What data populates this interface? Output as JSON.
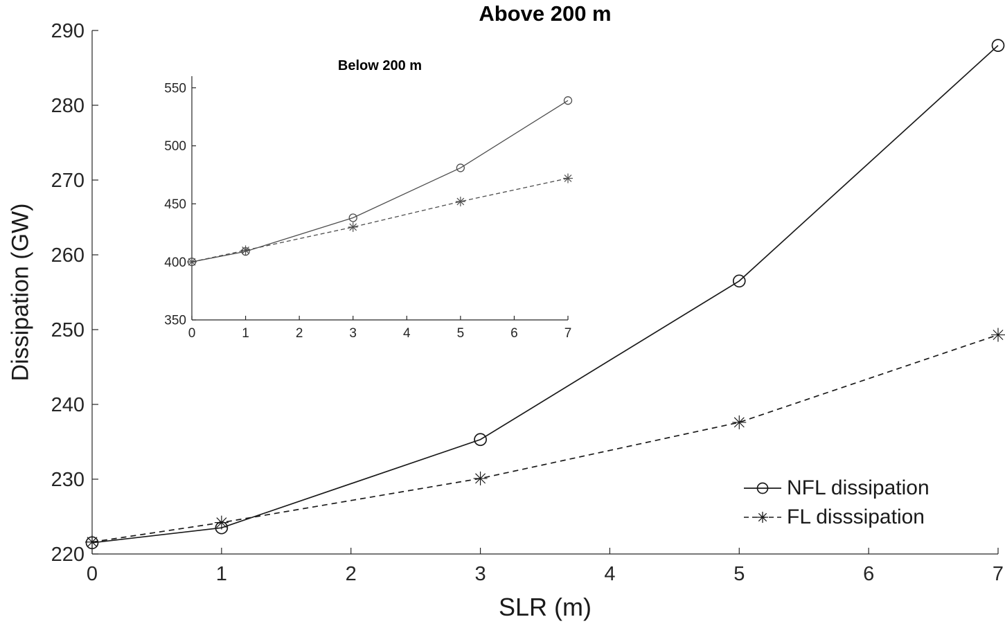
{
  "figure": {
    "background": "#ffffff",
    "axis_color": "#262626",
    "main_line_color": "#1a1a1a",
    "inset_line_color": "#4d4d4d"
  },
  "chart_data": [
    {
      "id": "main",
      "type": "line",
      "title": "Above 200 m",
      "xlabel": "SLR (m)",
      "ylabel": "Dissipation (GW)",
      "x": [
        0,
        1,
        3,
        5,
        7
      ],
      "xlim": [
        0,
        7
      ],
      "ylim": [
        220,
        290
      ],
      "xticks": [
        0,
        1,
        2,
        3,
        4,
        5,
        6,
        7
      ],
      "yticks": [
        220,
        230,
        240,
        250,
        260,
        270,
        280,
        290
      ],
      "grid": false,
      "legend_position": "bottom-right",
      "series": [
        {
          "name": "NFL dissipation",
          "line_style": "solid",
          "marker": "circle",
          "values": [
            221.5,
            223.5,
            235.3,
            256.5,
            288.0
          ]
        },
        {
          "name": "FL disssipation",
          "line_style": "dashed",
          "marker": "asterisk",
          "values": [
            221.6,
            224.2,
            230.1,
            237.6,
            249.3
          ]
        }
      ]
    },
    {
      "id": "inset",
      "type": "line",
      "title": "Below 200 m",
      "xlabel": "",
      "ylabel": "",
      "x": [
        0,
        1,
        3,
        5,
        7
      ],
      "xlim": [
        0,
        7
      ],
      "ylim": [
        350,
        560
      ],
      "xticks": [
        0,
        1,
        2,
        3,
        4,
        5,
        6,
        7
      ],
      "yticks": [
        350,
        400,
        450,
        500,
        550
      ],
      "grid": false,
      "legend_position": "none",
      "series": [
        {
          "name": "NFL dissipation",
          "line_style": "solid",
          "marker": "circle",
          "values": [
            400,
            409,
            438,
            481,
            539
          ]
        },
        {
          "name": "FL disssipation",
          "line_style": "dashed",
          "marker": "asterisk",
          "values": [
            400,
            410,
            430,
            452,
            472
          ]
        }
      ]
    }
  ]
}
